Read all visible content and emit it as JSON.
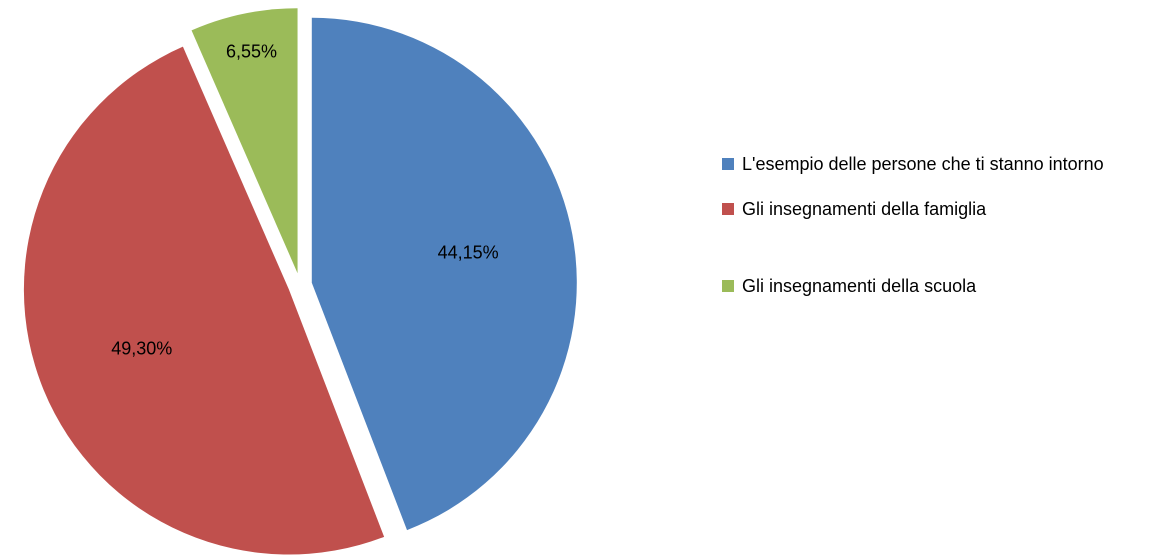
{
  "chart_data": {
    "type": "pie",
    "categories": [
      "L'esempio delle persone che ti stanno intorno",
      "Gli insegnamenti della famiglia",
      "Gli insegnamenti della scuola"
    ],
    "values": [
      44.15,
      49.3,
      6.55
    ],
    "value_labels": [
      "44,15%",
      "49,30%",
      "6,55%"
    ],
    "colors": [
      "#4f81bd",
      "#c0504d",
      "#9bbb59"
    ],
    "legend": "right"
  }
}
